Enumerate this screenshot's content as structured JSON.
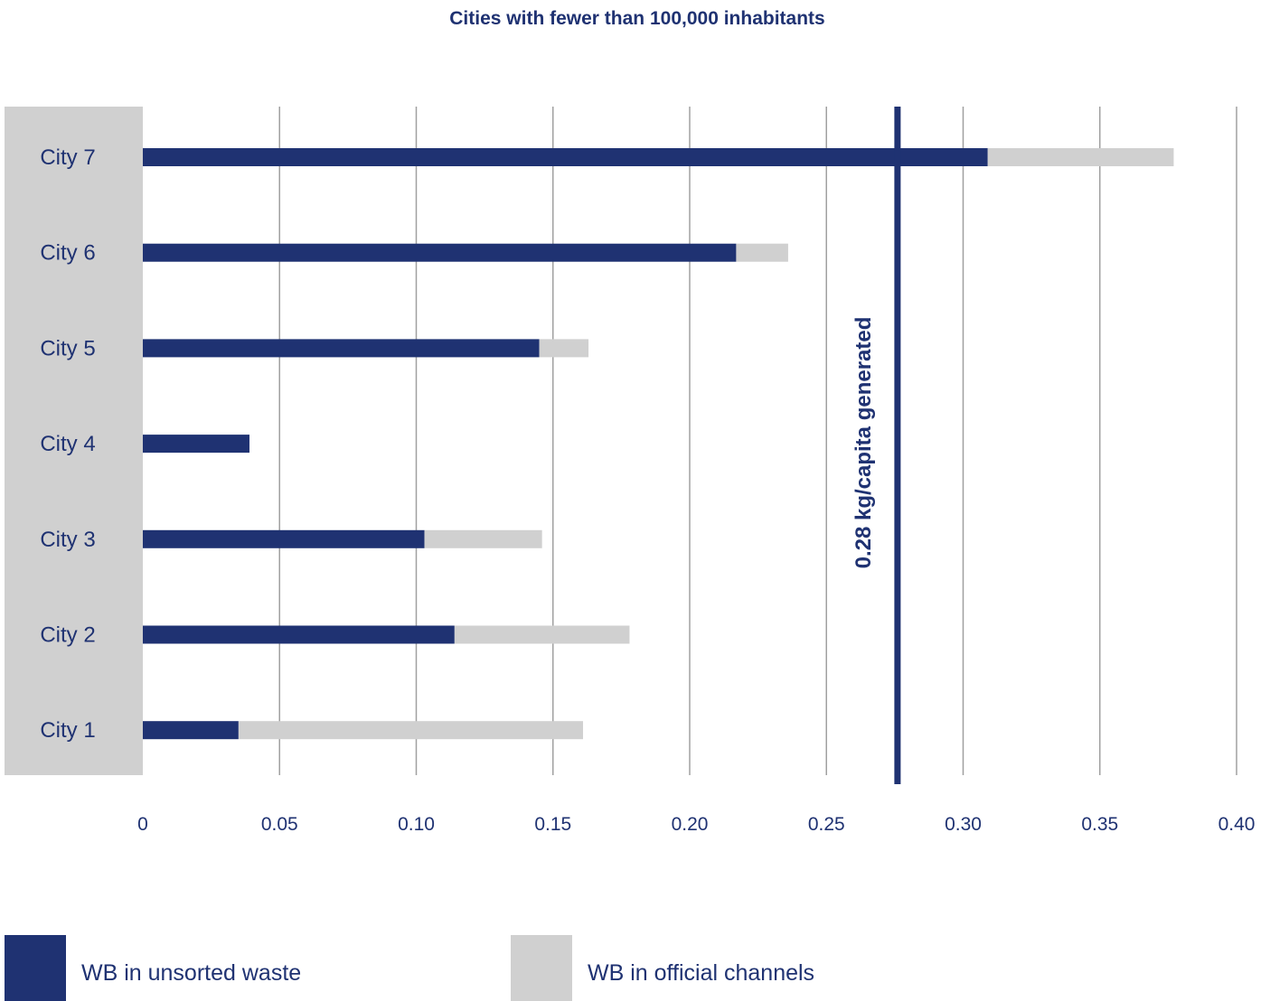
{
  "chart_data": {
    "type": "bar",
    "orientation": "horizontal",
    "stacked": true,
    "title": "Cities with fewer than 100,000 inhabitants",
    "categories": [
      "City 1",
      "City 2",
      "City 3",
      "City 4",
      "City 5",
      "City 6",
      "City 7"
    ],
    "series": [
      {
        "name": "WB in unsorted waste",
        "color": "#1f3272",
        "values": [
          0.035,
          0.114,
          0.103,
          0.039,
          0.145,
          0.217,
          0.309
        ]
      },
      {
        "name": "WB in official channels",
        "color": "#d0d0d0",
        "values": [
          0.126,
          0.064,
          0.043,
          0.0,
          0.018,
          0.019,
          0.068
        ]
      }
    ],
    "x_ticks": [
      "0",
      "0.05",
      "0.10",
      "0.15",
      "0.20",
      "0.25",
      "0.30",
      "0.35",
      "0.40"
    ],
    "xlim": [
      0,
      0.4
    ],
    "grid": true,
    "reference_line": {
      "value": 0.276,
      "label": "0.28 kg/capita generated",
      "color": "#1f3272"
    },
    "legend_position": "bottom",
    "colors": {
      "text": "#1f3272",
      "grid": "#a0a0a0",
      "category_band": "#d0d0d0"
    }
  }
}
